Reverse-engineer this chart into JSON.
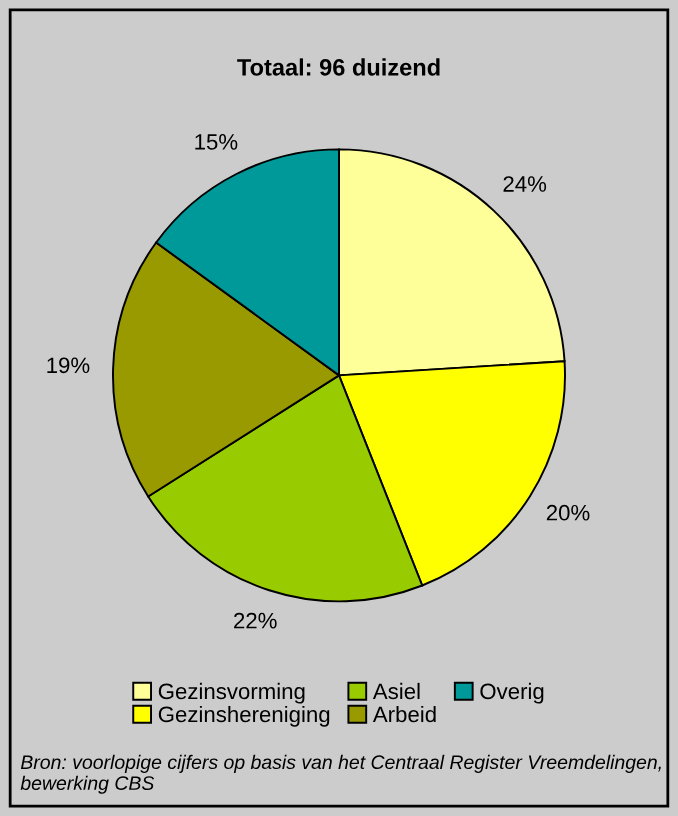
{
  "chart_data": {
    "type": "pie",
    "title": "Totaal: 96 duizend",
    "categories": [
      "Gezinsvorming",
      "Gezinshereniging",
      "Asiel",
      "Arbeid",
      "Overig"
    ],
    "values": [
      24,
      20,
      22,
      19,
      15
    ],
    "value_labels": [
      "24%",
      "20%",
      "22%",
      "19%",
      "15%"
    ],
    "colors": [
      "#ffff99",
      "#ffff00",
      "#99cc00",
      "#999900",
      "#009999"
    ],
    "legend": "bottom",
    "annotations": [
      "Bron: voorlopige cijfers op basis van het Centraal Register Vreemdelingen, bewerking CBS"
    ]
  }
}
